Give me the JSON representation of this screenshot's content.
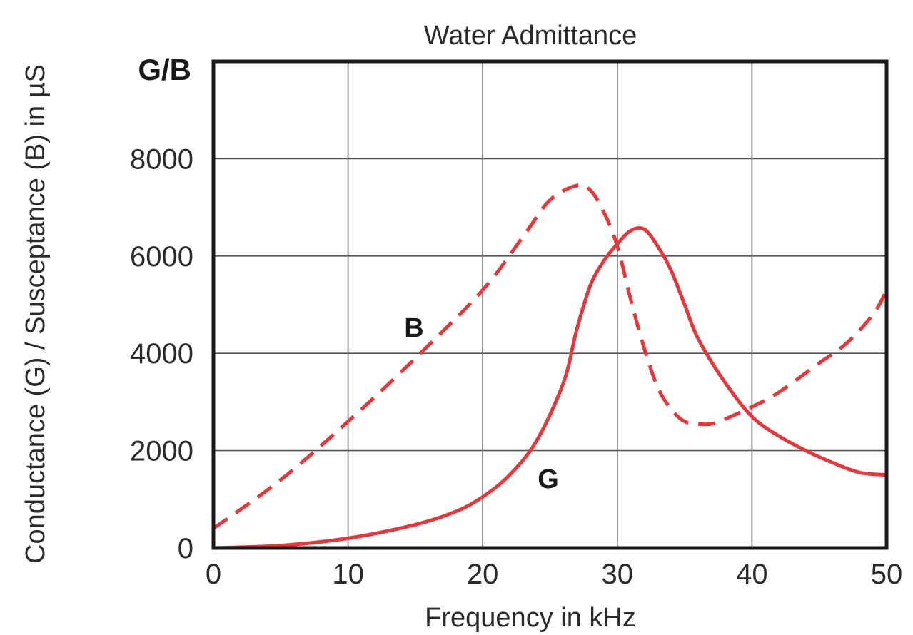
{
  "chart_data": {
    "type": "line",
    "title": "Water Admittance",
    "xlabel": "Frequency in kHz",
    "ylabel": "Conductance (G) / Susceptance (B) in µS",
    "corner_label": "G/B",
    "xlim": [
      0,
      50
    ],
    "ylim": [
      0,
      10000
    ],
    "x_ticks": [
      0,
      10,
      20,
      30,
      40,
      50
    ],
    "y_ticks": [
      0,
      2000,
      4000,
      6000,
      8000
    ],
    "grid": true,
    "line_color": "#e0393e",
    "series": [
      {
        "name": "G",
        "style": "solid",
        "points": [
          [
            0,
            0
          ],
          [
            5,
            50
          ],
          [
            10,
            200
          ],
          [
            15,
            480
          ],
          [
            18,
            750
          ],
          [
            20,
            1050
          ],
          [
            22,
            1500
          ],
          [
            24,
            2200
          ],
          [
            26,
            3400
          ],
          [
            27,
            4500
          ],
          [
            28,
            5400
          ],
          [
            29,
            5900
          ],
          [
            30,
            6250
          ],
          [
            31,
            6520
          ],
          [
            32,
            6550
          ],
          [
            33,
            6200
          ],
          [
            34,
            5700
          ],
          [
            35,
            5000
          ],
          [
            36,
            4300
          ],
          [
            38,
            3400
          ],
          [
            40,
            2700
          ],
          [
            42,
            2300
          ],
          [
            44,
            2000
          ],
          [
            46,
            1750
          ],
          [
            48,
            1550
          ],
          [
            50,
            1500
          ]
        ]
      },
      {
        "name": "B",
        "style": "dashed",
        "points": [
          [
            0,
            400
          ],
          [
            5,
            1400
          ],
          [
            10,
            2600
          ],
          [
            15,
            3900
          ],
          [
            20,
            5300
          ],
          [
            23,
            6400
          ],
          [
            25,
            7150
          ],
          [
            27,
            7450
          ],
          [
            28,
            7350
          ],
          [
            29,
            6900
          ],
          [
            30,
            6200
          ],
          [
            31,
            5100
          ],
          [
            32,
            4100
          ],
          [
            33,
            3300
          ],
          [
            34,
            2850
          ],
          [
            35,
            2600
          ],
          [
            36,
            2550
          ],
          [
            37,
            2550
          ],
          [
            38,
            2650
          ],
          [
            40,
            2900
          ],
          [
            42,
            3200
          ],
          [
            45,
            3800
          ],
          [
            47,
            4200
          ],
          [
            49,
            4800
          ],
          [
            50,
            5300
          ]
        ]
      }
    ]
  }
}
